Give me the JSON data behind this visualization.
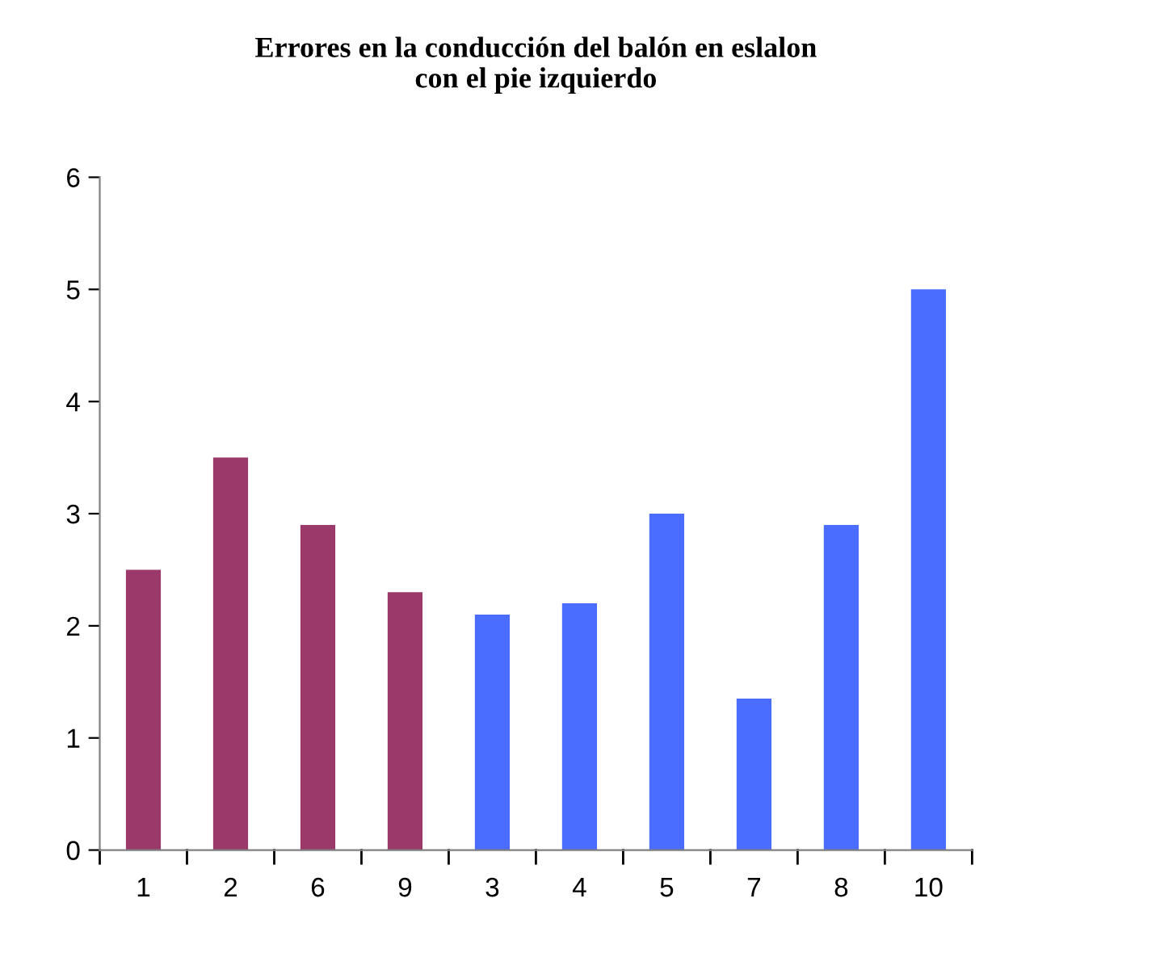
{
  "chart_data": {
    "type": "bar",
    "title": "Errores en la conducción del balón en eslalon\ncon el pie izquierdo",
    "categories": [
      "1",
      "2",
      "6",
      "9",
      "3",
      "4",
      "5",
      "7",
      "8",
      "10"
    ],
    "values": [
      2.5,
      3.5,
      2.9,
      2.3,
      2.1,
      2.2,
      3.0,
      1.35,
      2.9,
      5.0
    ],
    "colors": [
      "#9b3a6a",
      "#9b3a6a",
      "#9b3a6a",
      "#9b3a6a",
      "#4a6cff",
      "#4a6cff",
      "#4a6cff",
      "#4a6cff",
      "#4a6cff",
      "#4a6cff"
    ],
    "ylim": [
      0,
      6
    ],
    "yticks": [
      0,
      1,
      2,
      3,
      4,
      5,
      6
    ],
    "grid": false,
    "legend": false
  }
}
